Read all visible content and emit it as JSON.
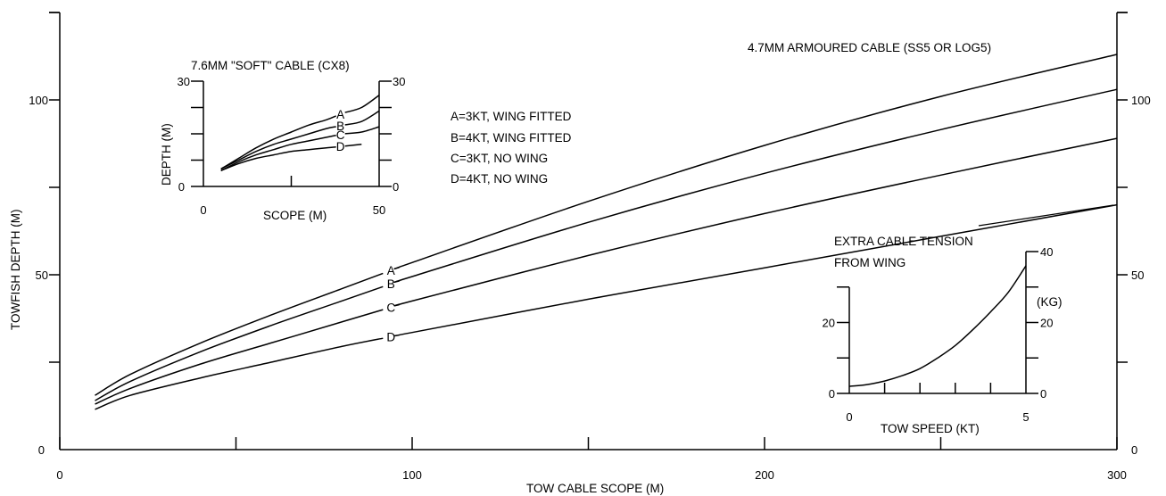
{
  "chart_data": [
    {
      "type": "line",
      "title": "",
      "xlabel": "TOW CABLE SCOPE (M)",
      "ylabel": "TOWFISH DEPTH (M)",
      "xlim": [
        0,
        300
      ],
      "ylim": [
        0,
        125
      ],
      "x_ticks": [
        0,
        100,
        200,
        300
      ],
      "y_ticks": [
        0,
        50,
        100
      ],
      "annotation": "4.7MM ARMOURED CABLE (SS5 OR LOG5)",
      "series": [
        {
          "name": "A",
          "x": [
            10,
            20,
            40,
            60,
            80,
            100,
            150,
            200,
            250,
            300
          ],
          "y": [
            15.5,
            21.5,
            30.5,
            38.5,
            46,
            53.5,
            71,
            87,
            101,
            113
          ]
        },
        {
          "name": "B",
          "x": [
            10,
            20,
            40,
            60,
            80,
            100,
            150,
            200,
            250,
            300
          ],
          "y": [
            14,
            19.5,
            28,
            35.5,
            42.5,
            49.5,
            65,
            79,
            91.5,
            103
          ]
        },
        {
          "name": "C",
          "x": [
            10,
            20,
            40,
            60,
            80,
            100,
            150,
            200,
            250,
            300
          ],
          "y": [
            13,
            17.5,
            24.5,
            30.5,
            36.5,
            42.5,
            55.5,
            67.5,
            78.5,
            89
          ]
        },
        {
          "name": "D",
          "x": [
            10,
            20,
            40,
            60,
            80,
            100,
            150,
            200,
            250,
            300
          ],
          "y": [
            11.5,
            15.5,
            20.5,
            25,
            29.5,
            33.5,
            43,
            52,
            61,
            70
          ]
        }
      ]
    },
    {
      "type": "line",
      "title": "7.6MM \"SOFT\" CABLE (CX8)",
      "xlabel": "SCOPE (M)",
      "ylabel": "DEPTH (M)",
      "xlim": [
        0,
        50
      ],
      "ylim": [
        0,
        30
      ],
      "x_ticks": [
        0,
        50
      ],
      "y_ticks": [
        0,
        30
      ],
      "series": [
        {
          "name": "A",
          "x": [
            5,
            10,
            15,
            20,
            25,
            30,
            35,
            40,
            45,
            50
          ],
          "y": [
            5,
            8,
            11,
            13.5,
            15.5,
            17.5,
            19,
            21,
            22.5,
            26
          ]
        },
        {
          "name": "B",
          "x": [
            5,
            10,
            15,
            20,
            25,
            30,
            35,
            40,
            45,
            50
          ],
          "y": [
            5,
            7.5,
            10,
            12,
            13.5,
            15,
            16.5,
            17.5,
            18.5,
            21.5
          ]
        },
        {
          "name": "C",
          "x": [
            5,
            10,
            15,
            20,
            25,
            30,
            35,
            40,
            45,
            50
          ],
          "y": [
            4.5,
            7,
            9,
            10.5,
            12,
            13,
            14,
            15,
            15.5,
            17
          ]
        },
        {
          "name": "D",
          "x": [
            5,
            10,
            15,
            20,
            25,
            30,
            35,
            40,
            45
          ],
          "y": [
            4.5,
            6.5,
            8,
            9,
            10,
            10.5,
            11,
            11.5,
            12
          ]
        }
      ]
    },
    {
      "type": "line",
      "title": "",
      "xlabel": "TOW SPEED (KT)",
      "ylabel": "(KG)",
      "xlim": [
        0,
        5
      ],
      "ylim": [
        0,
        40
      ],
      "x_ticks": [
        0,
        5
      ],
      "y_ticks": [
        0,
        20,
        40
      ],
      "annotation": "EXTRA CABLE TENSION FROM WING",
      "series": [
        {
          "name": "",
          "x": [
            0,
            0.5,
            1,
            1.5,
            2,
            2.5,
            3,
            3.5,
            4,
            4.5,
            5
          ],
          "y": [
            2,
            2.5,
            3.5,
            5,
            7,
            10,
            13.5,
            18,
            23,
            28.5,
            36
          ]
        }
      ]
    }
  ],
  "legend": {
    "lines": [
      "A=3KT, WING FITTED",
      "B=4KT, WING FITTED",
      "C=3KT, NO WING",
      "D=4KT, NO WING"
    ]
  },
  "text": {
    "main_title": "4.7MM ARMOURED CABLE (SS5 OR LOG5)",
    "main_xlabel": "TOW CABLE SCOPE (M)",
    "main_ylabel": "TOWFISH DEPTH (M)",
    "inset_title": "7.6MM \"SOFT\" CABLE (CX8)",
    "inset_xlabel": "SCOPE (M)",
    "inset_ylabel": "DEPTH (M)",
    "tension_line1": "EXTRA CABLE TENSION",
    "tension_line2": "FROM WING",
    "tension_xlabel": "TOW SPEED (KT)",
    "tension_unit": "(KG)"
  }
}
